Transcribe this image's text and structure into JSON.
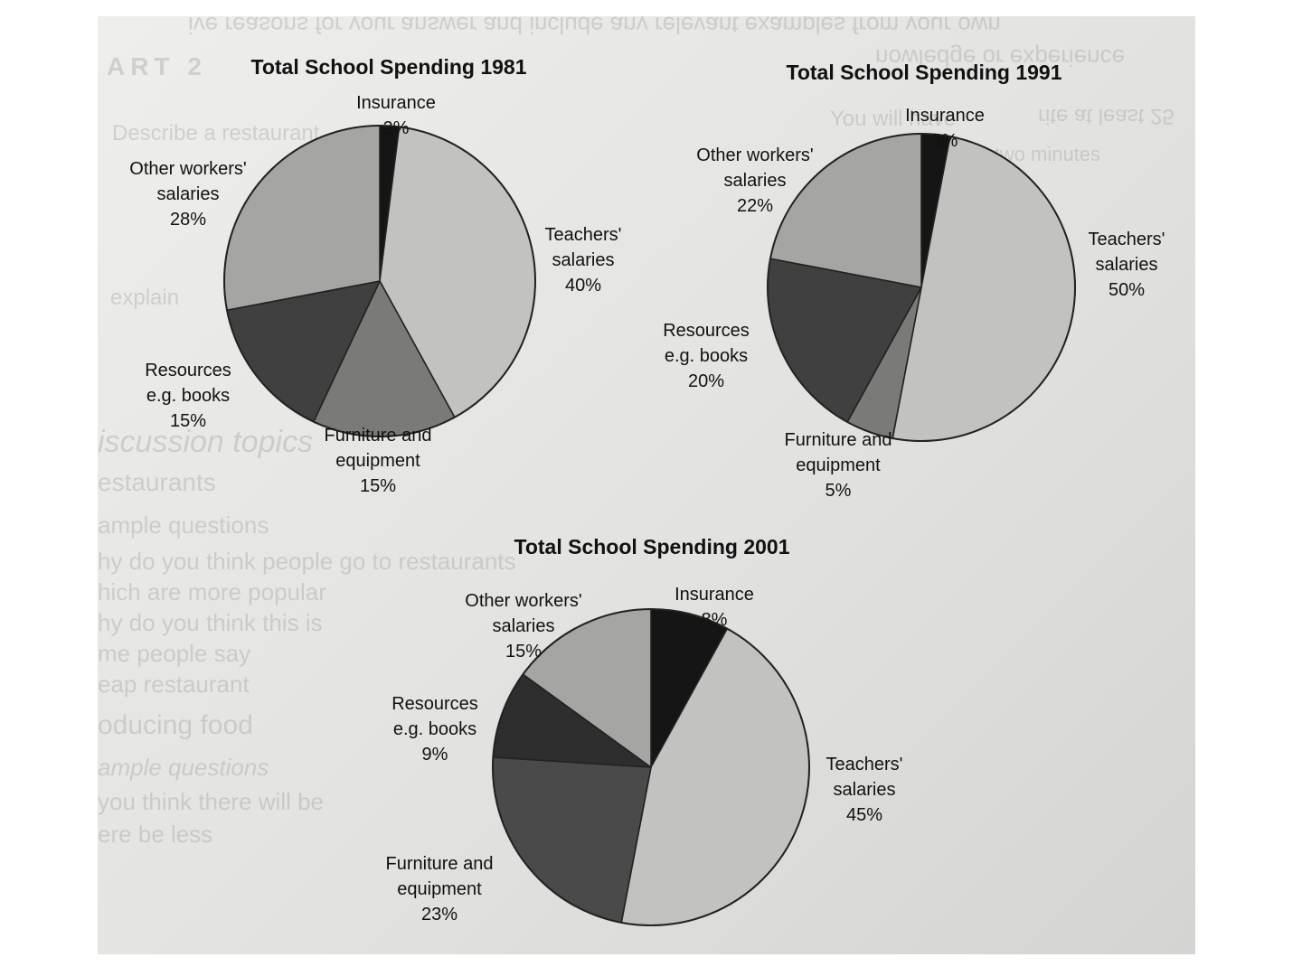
{
  "chart_data": [
    {
      "type": "pie",
      "title": "Total School Spending 1981",
      "slices": [
        {
          "label": [
            "Insurance"
          ],
          "value": 2,
          "value_label": "2%",
          "color": "#151515"
        },
        {
          "label": [
            "Teachers'",
            "salaries"
          ],
          "value": 40,
          "value_label": "40%",
          "color": "#c2c2c0"
        },
        {
          "label": [
            "Furniture and",
            "equipment"
          ],
          "value": 15,
          "value_label": "15%",
          "color": "#7a7a78"
        },
        {
          "label": [
            "Resources",
            "e.g. books"
          ],
          "value": 15,
          "value_label": "15%",
          "color": "#404040"
        },
        {
          "label": [
            "Other workers'",
            "salaries"
          ],
          "value": 28,
          "value_label": "28%",
          "color": "#a5a5a3"
        }
      ]
    },
    {
      "type": "pie",
      "title": "Total School Spending 1991",
      "slices": [
        {
          "label": [
            "Insurance"
          ],
          "value": 3,
          "value_label": "3%",
          "color": "#151515"
        },
        {
          "label": [
            "Teachers'",
            "salaries"
          ],
          "value": 50,
          "value_label": "50%",
          "color": "#c2c2c0"
        },
        {
          "label": [
            "Furniture and",
            "equipment"
          ],
          "value": 5,
          "value_label": "5%",
          "color": "#7a7a78"
        },
        {
          "label": [
            "Resources",
            "e.g. books"
          ],
          "value": 20,
          "value_label": "20%",
          "color": "#404040"
        },
        {
          "label": [
            "Other workers'",
            "salaries"
          ],
          "value": 22,
          "value_label": "22%",
          "color": "#a5a5a3"
        }
      ]
    },
    {
      "type": "pie",
      "title": "Total School Spending 2001",
      "slices": [
        {
          "label": [
            "Insurance"
          ],
          "value": 8,
          "value_label": "8%",
          "color": "#151515"
        },
        {
          "label": [
            "Teachers'",
            "salaries"
          ],
          "value": 45,
          "value_label": "45%",
          "color": "#c2c2c0"
        },
        {
          "label": [
            "Furniture and",
            "equipment"
          ],
          "value": 23,
          "value_label": "23%",
          "color": "#4a4a4a"
        },
        {
          "label": [
            "Resources",
            "e.g. books"
          ],
          "value": 9,
          "value_label": "9%",
          "color": "#2e2e2e"
        },
        {
          "label": [
            "Other workers'",
            "salaries"
          ],
          "value": 15,
          "value_label": "15%",
          "color": "#a5a5a3"
        }
      ]
    }
  ],
  "background_text": [
    "ive reasons for your answer and include any relevant examples from your own",
    "nowledge or experience",
    "ART 2",
    "rite at least 25",
    "You will have",
    "Describe a restaurant",
    "topic for one to two minutes",
    "explain",
    "iscussion topics",
    "estaurants",
    "ample questions",
    "hy do you think people go to restaurants",
    "hich are more popular",
    "hy do you think this is",
    "me people say",
    "eap restaurant",
    "oducing food",
    "ample questions",
    "you think there will be",
    "ere be less"
  ]
}
